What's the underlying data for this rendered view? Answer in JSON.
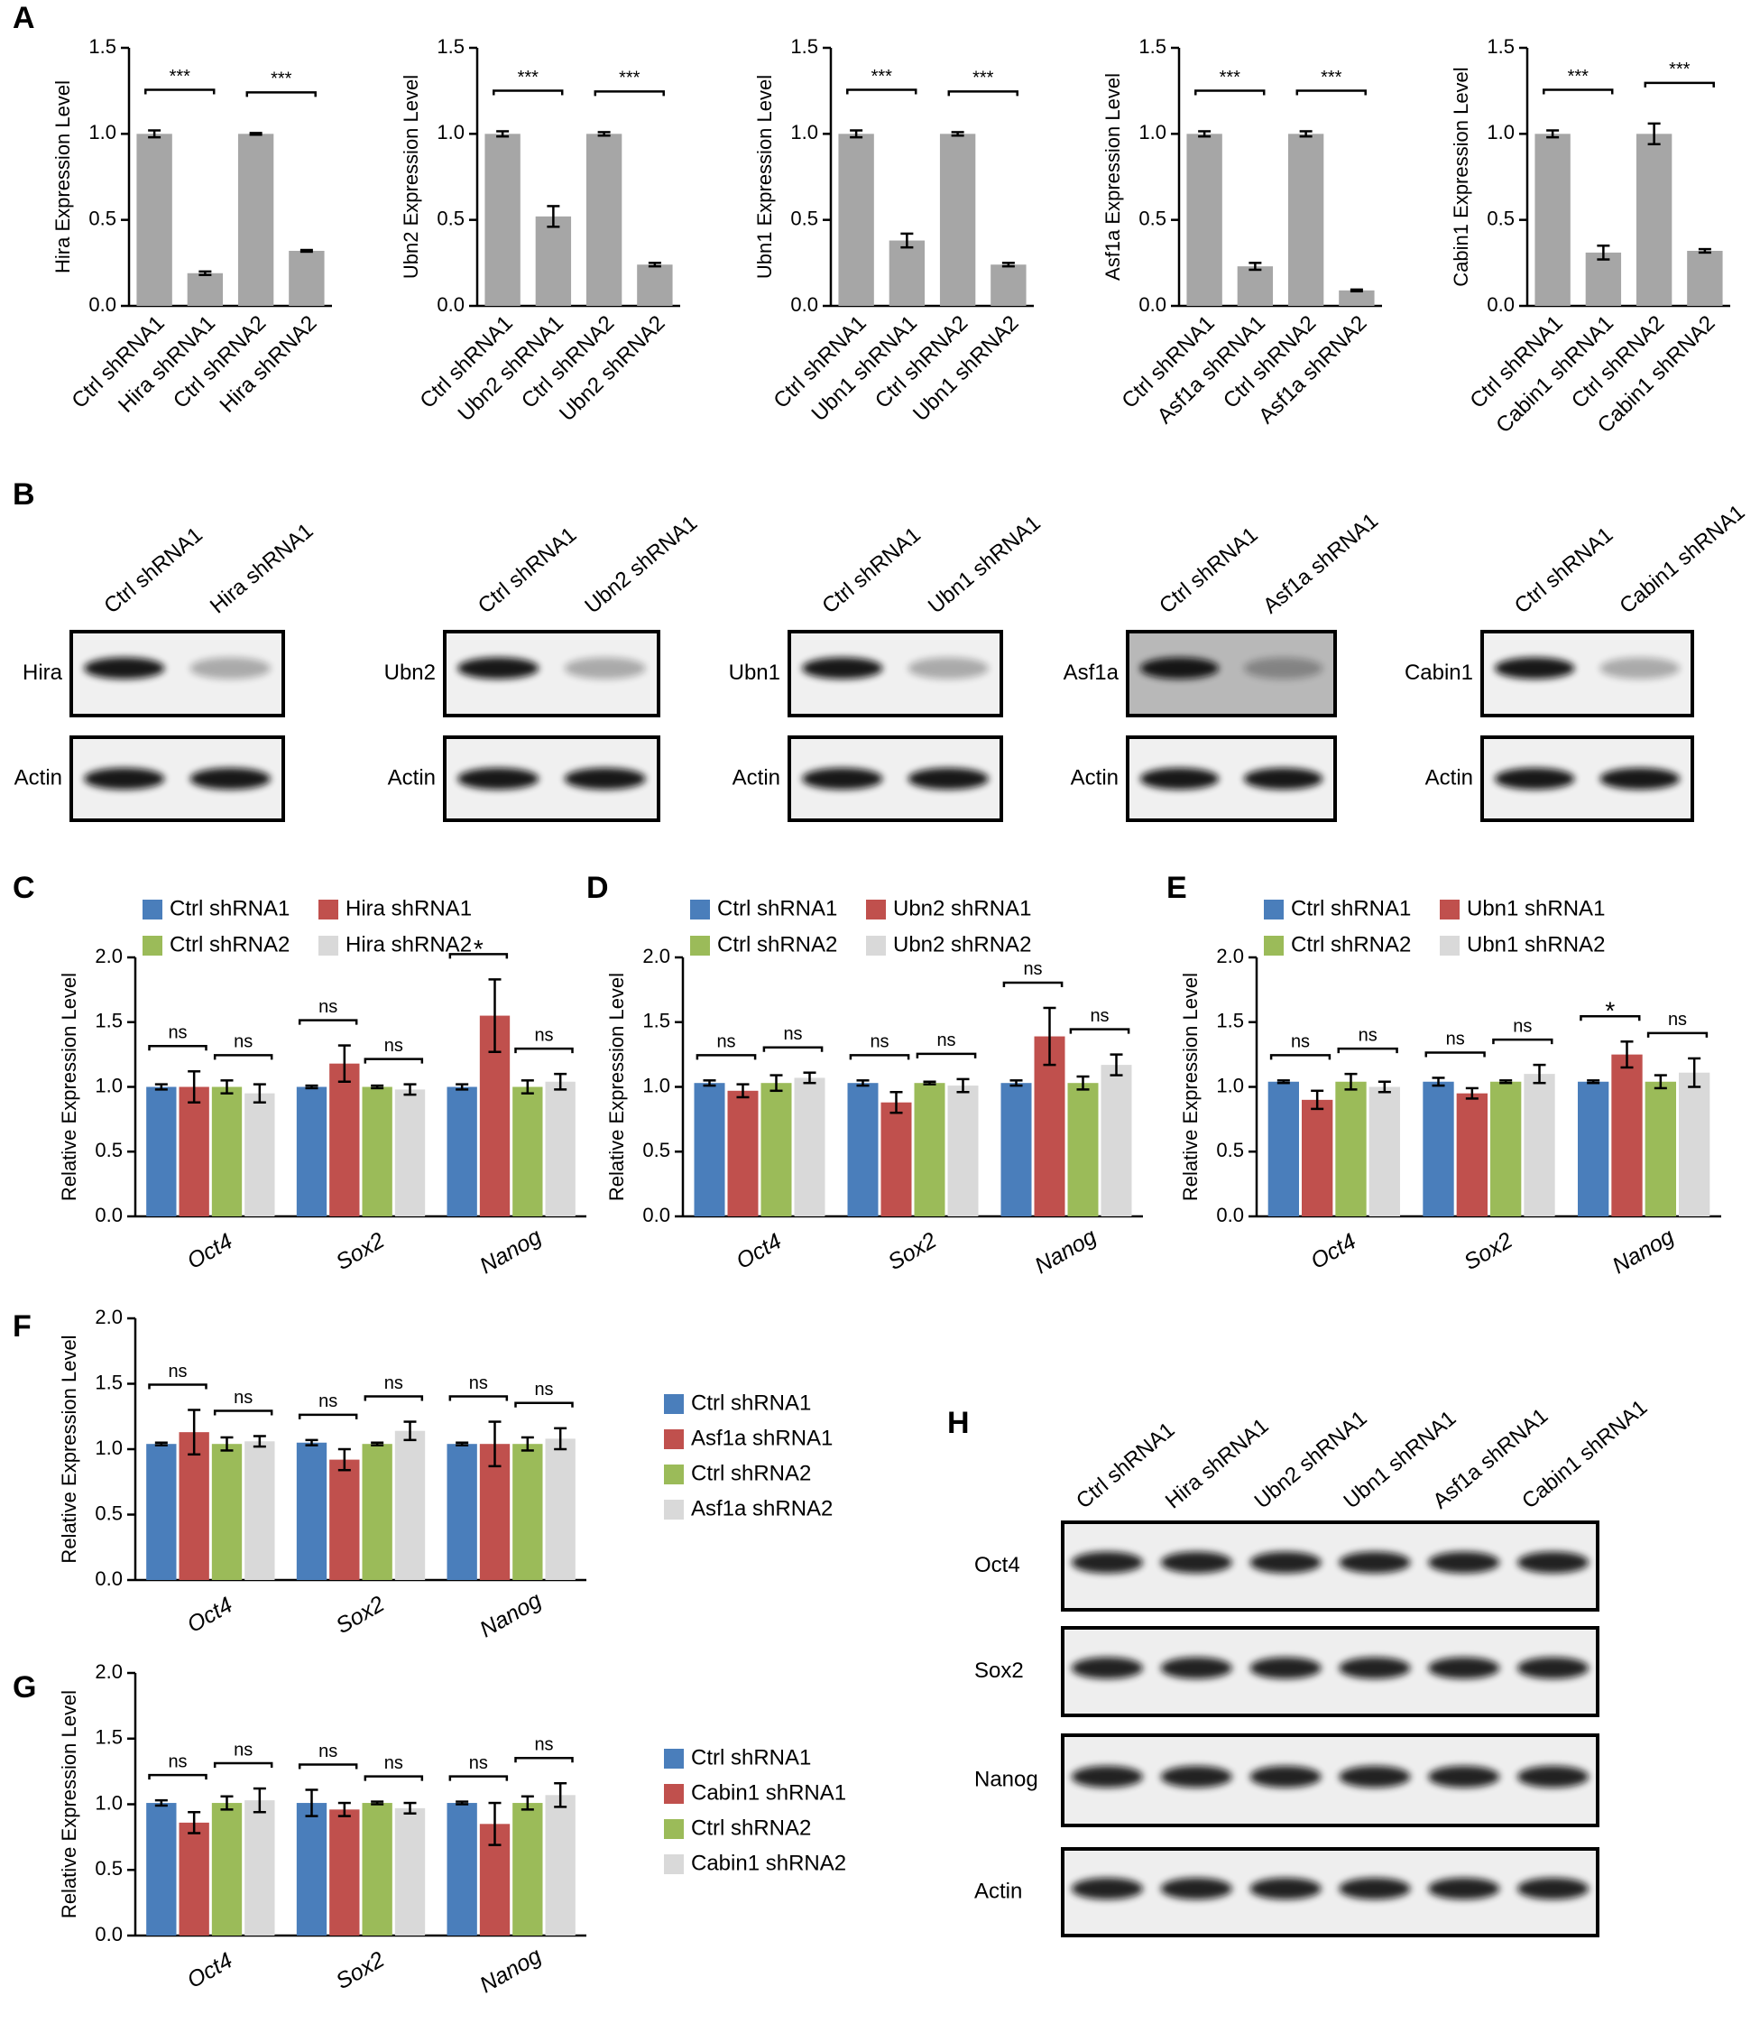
{
  "panel_labels": [
    "A",
    "B",
    "C",
    "D",
    "E",
    "F",
    "G",
    "H"
  ],
  "chart_data": [
    {
      "type": "bar",
      "ylabel": "Hira Expression Level",
      "categories": [
        "Ctrl shRNA1",
        "Hira shRNA1",
        "Ctrl shRNA2",
        "Hira shRNA2"
      ],
      "values": [
        1.0,
        0.19,
        1.0,
        0.32
      ],
      "errors": [
        0.02,
        0.01,
        0.005,
        0.005
      ],
      "color": "#a6a6a6",
      "ylim": [
        0,
        1.5
      ],
      "yticks": [
        {
          "value": 0,
          "label": "0.0"
        },
        0.5,
        {
          "value": 1,
          "label": "1.0"
        },
        1.5
      ],
      "significance": [
        "***",
        "***"
      ]
    },
    {
      "type": "bar",
      "ylabel": "Ubn2 Expression Level",
      "categories": [
        "Ctrl shRNA1",
        "Ubn2 shRNA1",
        "Ctrl shRNA2",
        "Ubn2 shRNA2"
      ],
      "values": [
        1.0,
        0.52,
        1.0,
        0.24
      ],
      "errors": [
        0.015,
        0.06,
        0.01,
        0.01
      ],
      "color": "#a6a6a6",
      "ylim": [
        0,
        1.5
      ],
      "yticks": [
        {
          "value": 0,
          "label": "0.0"
        },
        0.5,
        {
          "value": 1,
          "label": "1.0"
        },
        1.5
      ],
      "significance": [
        "***",
        "***"
      ]
    },
    {
      "type": "bar",
      "ylabel": "Ubn1 Expression Level",
      "categories": [
        "Ctrl shRNA1",
        "Ubn1 shRNA1",
        "Ctrl shRNA2",
        "Ubn1 shRNA2"
      ],
      "values": [
        1.0,
        0.38,
        1.0,
        0.24
      ],
      "errors": [
        0.02,
        0.04,
        0.01,
        0.01
      ],
      "color": "#a6a6a6",
      "ylim": [
        0,
        1.5
      ],
      "yticks": [
        {
          "value": 0,
          "label": "0.0"
        },
        0.5,
        {
          "value": 1,
          "label": "1.0"
        },
        1.5
      ],
      "significance": [
        "***",
        "***"
      ]
    },
    {
      "type": "bar",
      "ylabel": "Asf1a Expression Level",
      "categories": [
        "Ctrl shRNA1",
        "Asf1a shRNA1",
        "Ctrl shRNA2",
        "Asf1a shRNA2"
      ],
      "values": [
        1.0,
        0.23,
        1.0,
        0.09
      ],
      "errors": [
        0.015,
        0.02,
        0.015,
        0.005
      ],
      "color": "#a6a6a6",
      "ylim": [
        0,
        1.5
      ],
      "yticks": [
        {
          "value": 0,
          "label": "0.0"
        },
        0.5,
        {
          "value": 1,
          "label": "1.0"
        },
        1.5
      ],
      "significance": [
        "***",
        "***"
      ]
    },
    {
      "type": "bar",
      "ylabel": "Cabin1 Expression Level",
      "categories": [
        "Ctrl shRNA1",
        "Cabin1 shRNA1",
        "Ctrl shRNA2",
        "Cabin1 shRNA2"
      ],
      "values": [
        1.0,
        0.31,
        1.0,
        0.32
      ],
      "errors": [
        0.02,
        0.04,
        0.06,
        0.01
      ],
      "color": "#a6a6a6",
      "ylim": [
        0,
        1.5
      ],
      "yticks": [
        {
          "value": 0,
          "label": "0.0"
        },
        0.5,
        {
          "value": 1,
          "label": "1.0"
        },
        1.5
      ],
      "significance": [
        "***",
        "***"
      ]
    },
    {
      "type": "grouped_bar",
      "ylabel": "Relative Expression Level",
      "categories": [
        "Oct4",
        "Sox2",
        "Nanog"
      ],
      "legend": "top",
      "series": [
        {
          "name": "Ctrl shRNA1",
          "color": "#4a7ebb",
          "values": [
            1.0,
            1.0,
            1.0
          ],
          "errors": [
            0.02,
            0.01,
            0.02
          ]
        },
        {
          "name": "Hira shRNA1",
          "color": "#c0504d",
          "values": [
            1.0,
            1.18,
            1.55
          ],
          "errors": [
            0.12,
            0.14,
            0.28
          ]
        },
        {
          "name": "Ctrl shRNA2",
          "color": "#9bbb59",
          "values": [
            1.0,
            1.0,
            1.0
          ],
          "errors": [
            0.05,
            0.01,
            0.05
          ]
        },
        {
          "name": "Hira shRNA2",
          "color": "#d9d9d9",
          "values": [
            0.95,
            0.98,
            1.04
          ],
          "errors": [
            0.07,
            0.04,
            0.06
          ]
        }
      ],
      "ylim": [
        0,
        2
      ],
      "yticks": [
        {
          "value": 0,
          "label": "0.0"
        },
        0.5,
        {
          "value": 1,
          "label": "1.0"
        },
        1.5,
        {
          "value": 2,
          "label": "2.0"
        }
      ],
      "significance": [
        [
          "ns",
          "ns"
        ],
        [
          "ns",
          "ns"
        ],
        [
          "*",
          "ns"
        ]
      ]
    },
    {
      "type": "grouped_bar",
      "ylabel": "Relative Expression Level",
      "categories": [
        "Oct4",
        "Sox2",
        "Nanog"
      ],
      "legend": "top",
      "series": [
        {
          "name": "Ctrl shRNA1",
          "color": "#4a7ebb",
          "values": [
            1.03,
            1.03,
            1.03
          ],
          "errors": [
            0.02,
            0.02,
            0.02
          ]
        },
        {
          "name": "Ubn2 shRNA1",
          "color": "#c0504d",
          "values": [
            0.97,
            0.88,
            1.39
          ],
          "errors": [
            0.05,
            0.08,
            0.22
          ]
        },
        {
          "name": "Ctrl shRNA2",
          "color": "#9bbb59",
          "values": [
            1.03,
            1.03,
            1.03
          ],
          "errors": [
            0.06,
            0.01,
            0.05
          ]
        },
        {
          "name": "Ubn2 shRNA2",
          "color": "#d9d9d9",
          "values": [
            1.07,
            1.01,
            1.17
          ],
          "errors": [
            0.04,
            0.05,
            0.08
          ]
        }
      ],
      "ylim": [
        0,
        2
      ],
      "yticks": [
        {
          "value": 0,
          "label": "0.0"
        },
        0.5,
        {
          "value": 1,
          "label": "1.0"
        },
        1.5,
        {
          "value": 2,
          "label": "2.0"
        }
      ],
      "significance": [
        [
          "ns",
          "ns"
        ],
        [
          "ns",
          "ns"
        ],
        [
          "ns",
          "ns"
        ]
      ]
    },
    {
      "type": "grouped_bar",
      "ylabel": "Relative Expression Level",
      "categories": [
        "Oct4",
        "Sox2",
        "Nanog"
      ],
      "legend": "top",
      "series": [
        {
          "name": "Ctrl shRNA1",
          "color": "#4a7ebb",
          "values": [
            1.04,
            1.04,
            1.04
          ],
          "errors": [
            0.01,
            0.03,
            0.01
          ]
        },
        {
          "name": "Ubn1 shRNA1",
          "color": "#c0504d",
          "values": [
            0.9,
            0.95,
            1.25
          ],
          "errors": [
            0.07,
            0.04,
            0.1
          ]
        },
        {
          "name": "Ctrl shRNA2",
          "color": "#9bbb59",
          "values": [
            1.04,
            1.04,
            1.04
          ],
          "errors": [
            0.06,
            0.01,
            0.05
          ]
        },
        {
          "name": "Ubn1 shRNA2",
          "color": "#d9d9d9",
          "values": [
            1.0,
            1.1,
            1.11
          ],
          "errors": [
            0.04,
            0.07,
            0.11
          ]
        }
      ],
      "ylim": [
        0,
        2
      ],
      "yticks": [
        {
          "value": 0,
          "label": "0.0"
        },
        0.5,
        {
          "value": 1,
          "label": "1.0"
        },
        1.5,
        {
          "value": 2,
          "label": "2.0"
        }
      ],
      "significance": [
        [
          "ns",
          "ns"
        ],
        [
          "ns",
          "ns"
        ],
        [
          "*",
          "ns"
        ]
      ]
    },
    {
      "type": "grouped_bar",
      "ylabel": "Relative Expression Level",
      "categories": [
        "Oct4",
        "Sox2",
        "Nanog"
      ],
      "legend": "right",
      "series": [
        {
          "name": "Ctrl shRNA1",
          "color": "#4a7ebb",
          "values": [
            1.04,
            1.05,
            1.04
          ],
          "errors": [
            0.01,
            0.02,
            0.01
          ]
        },
        {
          "name": "Asf1a shRNA1",
          "color": "#c0504d",
          "values": [
            1.13,
            0.92,
            1.04
          ],
          "errors": [
            0.17,
            0.08,
            0.17
          ]
        },
        {
          "name": "Ctrl shRNA2",
          "color": "#9bbb59",
          "values": [
            1.04,
            1.04,
            1.04
          ],
          "errors": [
            0.05,
            0.01,
            0.05
          ]
        },
        {
          "name": "Asf1a shRNA2",
          "color": "#d9d9d9",
          "values": [
            1.06,
            1.14,
            1.08
          ],
          "errors": [
            0.04,
            0.07,
            0.08
          ]
        }
      ],
      "ylim": [
        0,
        2
      ],
      "yticks": [
        {
          "value": 0,
          "label": "0.0"
        },
        0.5,
        {
          "value": 1,
          "label": "1.0"
        },
        1.5,
        {
          "value": 2,
          "label": "2.0"
        }
      ],
      "significance": [
        [
          "ns",
          "ns"
        ],
        [
          "ns",
          "ns"
        ],
        [
          "ns",
          "ns"
        ]
      ]
    },
    {
      "type": "grouped_bar",
      "ylabel": "Relative Expression Level",
      "categories": [
        "Oct4",
        "Sox2",
        "Nanog"
      ],
      "legend": "right",
      "series": [
        {
          "name": "Ctrl shRNA1",
          "color": "#4a7ebb",
          "values": [
            1.01,
            1.01,
            1.01
          ],
          "errors": [
            0.02,
            0.1,
            0.01
          ]
        },
        {
          "name": "Cabin1 shRNA1",
          "color": "#c0504d",
          "values": [
            0.86,
            0.96,
            0.85
          ],
          "errors": [
            0.08,
            0.05,
            0.16
          ]
        },
        {
          "name": "Ctrl shRNA2",
          "color": "#9bbb59",
          "values": [
            1.01,
            1.01,
            1.01
          ],
          "errors": [
            0.05,
            0.01,
            0.05
          ]
        },
        {
          "name": "Cabin1  shRNA2",
          "color": "#d9d9d9",
          "values": [
            1.03,
            0.97,
            1.07
          ],
          "errors": [
            0.09,
            0.04,
            0.09
          ]
        }
      ],
      "ylim": [
        0,
        2
      ],
      "yticks": [
        {
          "value": 0,
          "label": "0.0"
        },
        0.5,
        {
          "value": 1,
          "label": "1.0"
        },
        1.5,
        {
          "value": 2,
          "label": "2.0"
        }
      ],
      "significance": [
        [
          "ns",
          "ns"
        ],
        [
          "ns",
          "ns"
        ],
        [
          "ns",
          "ns"
        ]
      ]
    }
  ],
  "blots": {
    "B": [
      {
        "lanes": [
          "Ctrl shRNA1",
          "Hira shRNA1"
        ],
        "rows": [
          "Hira",
          "Actin"
        ]
      },
      {
        "lanes": [
          "Ctrl shRNA1",
          "Ubn2 shRNA1"
        ],
        "rows": [
          "Ubn2",
          "Actin"
        ]
      },
      {
        "lanes": [
          "Ctrl shRNA1",
          "Ubn1 shRNA1"
        ],
        "rows": [
          "Ubn1",
          "Actin"
        ]
      },
      {
        "lanes": [
          "Ctrl shRNA1",
          "Asf1a shRNA1"
        ],
        "rows": [
          "Asf1a",
          "Actin"
        ]
      },
      {
        "lanes": [
          "Ctrl shRNA1",
          "Cabin1 shRNA1"
        ],
        "rows": [
          "Cabin1",
          "Actin"
        ]
      }
    ],
    "H": {
      "lanes": [
        "Ctrl shRNA1",
        "Hira shRNA1",
        "Ubn2 shRNA1",
        "Ubn1 shRNA1",
        "Asf1a shRNA1",
        "Cabin1 shRNA1"
      ],
      "rows": [
        "Oct4",
        "Sox2",
        "Nanog",
        "Actin"
      ]
    }
  }
}
